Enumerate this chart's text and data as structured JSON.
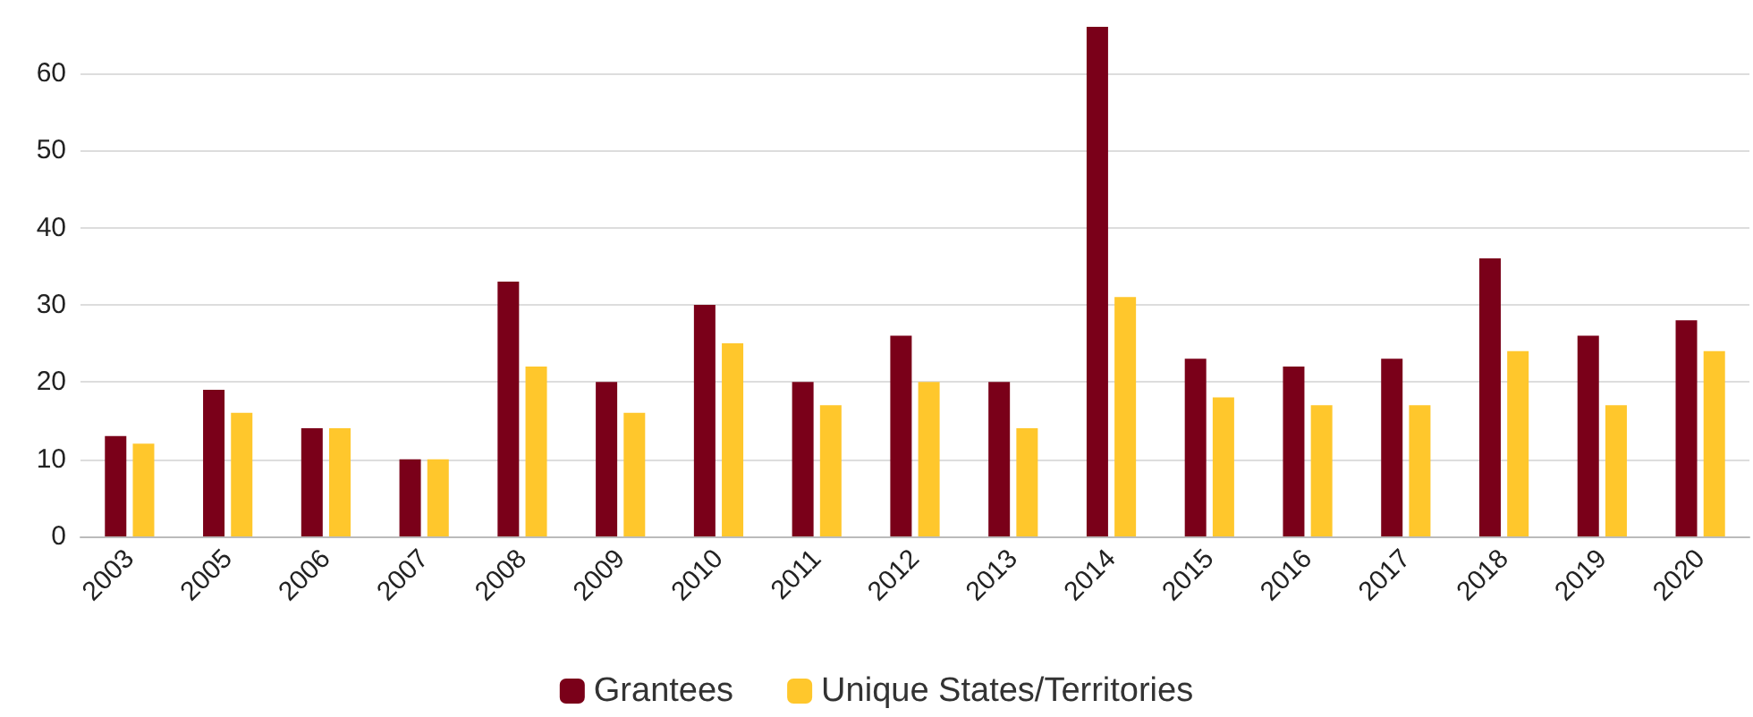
{
  "chart_data": {
    "type": "bar",
    "categories": [
      "2003",
      "2005",
      "2006",
      "2007",
      "2008",
      "2009",
      "2010",
      "2011",
      "2012",
      "2013",
      "2014",
      "2015",
      "2016",
      "2017",
      "2018",
      "2019",
      "2020"
    ],
    "series": [
      {
        "name": "Grantees",
        "color": "#7a0019",
        "values": [
          13,
          19,
          14,
          10,
          33,
          20,
          30,
          20,
          26,
          20,
          66,
          23,
          22,
          23,
          36,
          26,
          28
        ]
      },
      {
        "name": "Unique States/Territories",
        "color": "#ffc72c",
        "values": [
          12,
          16,
          14,
          10,
          22,
          16,
          25,
          17,
          20,
          14,
          31,
          18,
          17,
          17,
          24,
          17,
          24
        ]
      }
    ],
    "ylim": [
      0,
      66
    ],
    "yticks": [
      0,
      10,
      20,
      30,
      40,
      50,
      60
    ],
    "grid": "y",
    "legend": "bottom"
  }
}
